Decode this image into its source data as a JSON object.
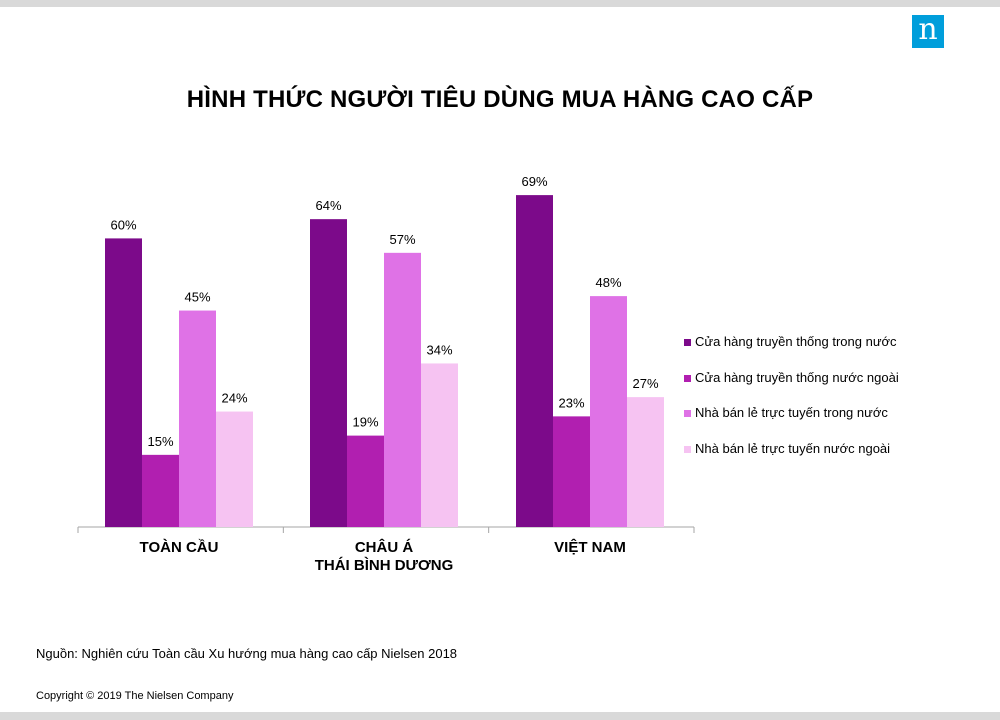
{
  "header": {
    "logo_text": "n",
    "logo_color": "#009edb"
  },
  "chart_data": {
    "type": "bar",
    "title": "HÌNH THỨC NGƯỜI TIÊU DÙNG MUA HÀNG CAO CẤP",
    "categories": [
      [
        "TOÀN CẦU"
      ],
      [
        "CHÂU Á",
        "THÁI BÌNH DƯƠNG"
      ],
      [
        "VIỆT NAM"
      ]
    ],
    "series": [
      {
        "name": "Cửa hàng truyền thống trong nước",
        "color": "#7c0a8a",
        "values": [
          60,
          64,
          69
        ],
        "labels": [
          "60%",
          "64%",
          "69%"
        ]
      },
      {
        "name": "Cửa hàng truyền thống nước ngoài",
        "color": "#b11fb0",
        "values": [
          15,
          19,
          23
        ],
        "labels": [
          "15%",
          "19%",
          "23%"
        ]
      },
      {
        "name": "Nhà bán lẻ trực tuyến trong nước",
        "color": "#df72e6",
        "values": [
          45,
          57,
          48
        ],
        "labels": [
          "45%",
          "57%",
          "48%"
        ]
      },
      {
        "name": "Nhà bán lẻ trực tuyến nước ngoài",
        "color": "#f6c3f2",
        "values": [
          24,
          34,
          27
        ],
        "labels": [
          "24%",
          "34%",
          "27%"
        ]
      }
    ],
    "ylim": [
      0,
      100
    ],
    "legend": "right",
    "grid": false
  },
  "footer": {
    "source": "Nguồn: Nghiên cứu Toàn cầu Xu hướng mua hàng cao cấp Nielsen 2018",
    "copyright": "Copyright © 2019  The Nielsen Company"
  }
}
